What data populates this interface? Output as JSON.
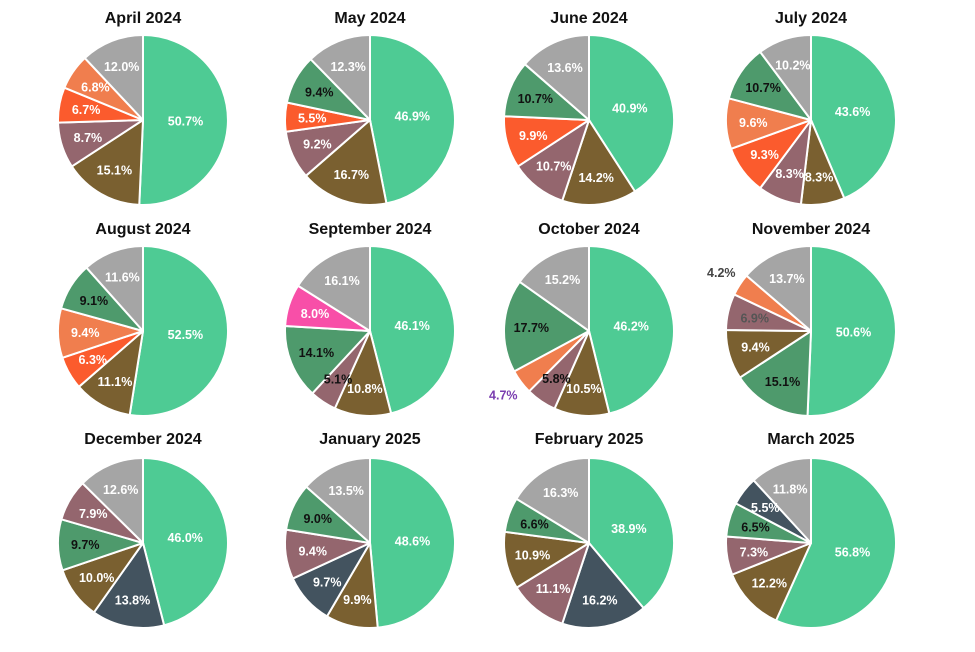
{
  "chart_data": [
    {
      "type": "pie",
      "title": "April 2024",
      "start": "top",
      "direction": "clockwise",
      "slices": [
        {
          "value": 50.7,
          "label": "50.7%",
          "color": "#4ecb94"
        },
        {
          "value": 15.1,
          "label": "15.1%",
          "color": "#7a6030"
        },
        {
          "value": 8.7,
          "label": "8.7%",
          "color": "#94666e"
        },
        {
          "value": 6.7,
          "label": "6.7%",
          "color": "#fb5b2d"
        },
        {
          "value": 6.8,
          "label": "6.8%",
          "color": "#f07e4e"
        },
        {
          "value": 12.0,
          "label": "12.0%",
          "color": "#a5a5a5"
        }
      ]
    },
    {
      "type": "pie",
      "title": "May 2024",
      "start": "top",
      "direction": "clockwise",
      "slices": [
        {
          "value": 46.9,
          "label": "46.9%",
          "color": "#4ecb94"
        },
        {
          "value": 16.7,
          "label": "16.7%",
          "color": "#7a6030"
        },
        {
          "value": 9.2,
          "label": "9.2%",
          "color": "#94666e"
        },
        {
          "value": 5.5,
          "label": "5.5%",
          "color": "#fb5b2d"
        },
        {
          "value": 9.4,
          "label": "9.4%",
          "color": "#4e9a6c",
          "dark": true
        },
        {
          "value": 12.3,
          "label": "12.3%",
          "color": "#a5a5a5"
        }
      ]
    },
    {
      "type": "pie",
      "title": "June 2024",
      "start": "top",
      "direction": "clockwise",
      "slices": [
        {
          "value": 40.9,
          "label": "40.9%",
          "color": "#4ecb94"
        },
        {
          "value": 14.2,
          "label": "14.2%",
          "color": "#7a6030"
        },
        {
          "value": 10.7,
          "label": "10.7%",
          "color": "#94666e"
        },
        {
          "value": 9.9,
          "label": "9.9%",
          "color": "#fb5b2d"
        },
        {
          "value": 10.7,
          "label": "10.7%",
          "color": "#4e9a6c",
          "dark": true
        },
        {
          "value": 13.6,
          "label": "13.6%",
          "color": "#a5a5a5"
        }
      ]
    },
    {
      "type": "pie",
      "title": "July 2024",
      "start": "top",
      "direction": "clockwise",
      "slices": [
        {
          "value": 43.6,
          "label": "43.6%",
          "color": "#4ecb94"
        },
        {
          "value": 8.3,
          "label": "8.3%",
          "color": "#7a6030"
        },
        {
          "value": 8.3,
          "label": "8.3%",
          "color": "#94666e"
        },
        {
          "value": 9.3,
          "label": "9.3%",
          "color": "#fb5b2d"
        },
        {
          "value": 9.6,
          "label": "9.6%",
          "color": "#f07e4e"
        },
        {
          "value": 10.7,
          "label": "10.7%",
          "color": "#4e9a6c",
          "dark": true
        },
        {
          "value": 10.2,
          "label": "10.2%",
          "color": "#a5a5a5"
        }
      ]
    },
    {
      "type": "pie",
      "title": "August 2024",
      "start": "top",
      "direction": "clockwise",
      "slices": [
        {
          "value": 52.5,
          "label": "52.5%",
          "color": "#4ecb94"
        },
        {
          "value": 11.1,
          "label": "11.1%",
          "color": "#7a6030"
        },
        {
          "value": 6.3,
          "label": "6.3%",
          "color": "#fb5b2d"
        },
        {
          "value": 9.4,
          "label": "9.4%",
          "color": "#f07e4e"
        },
        {
          "value": 9.1,
          "label": "9.1%",
          "color": "#4e9a6c",
          "dark": true
        },
        {
          "value": 11.6,
          "label": "11.6%",
          "color": "#a5a5a5"
        }
      ]
    },
    {
      "type": "pie",
      "title": "September 2024",
      "start": "top",
      "direction": "clockwise",
      "slices": [
        {
          "value": 46.1,
          "label": "46.1%",
          "color": "#4ecb94"
        },
        {
          "value": 10.8,
          "label": "10.8%",
          "color": "#7a6030"
        },
        {
          "value": 5.1,
          "label": "5.1%",
          "color": "#94666e",
          "dark": true
        },
        {
          "value": 14.1,
          "label": "14.1%",
          "color": "#4e9a6c",
          "dark": true
        },
        {
          "value": 8.0,
          "label": "8.0%",
          "color": "#f84fa8"
        },
        {
          "value": 16.1,
          "label": "16.1%",
          "color": "#a5a5a5"
        }
      ]
    },
    {
      "type": "pie",
      "title": "October 2024",
      "start": "top",
      "direction": "clockwise",
      "slices": [
        {
          "value": 46.2,
          "label": "46.2%",
          "color": "#4ecb94"
        },
        {
          "value": 10.5,
          "label": "10.5%",
          "color": "#7a6030"
        },
        {
          "value": 5.8,
          "label": "5.8%",
          "color": "#94666e",
          "dark": true
        },
        {
          "value": 4.7,
          "label": "4.7%",
          "color": "#f07e4e",
          "outside": true,
          "labelColor": "#7a3db0"
        },
        {
          "value": 17.7,
          "label": "17.7%",
          "color": "#4e9a6c",
          "dark": true
        },
        {
          "value": 15.2,
          "label": "15.2%",
          "color": "#a5a5a5"
        }
      ]
    },
    {
      "type": "pie",
      "title": "November 2024",
      "start": "top",
      "direction": "clockwise",
      "slices": [
        {
          "value": 50.6,
          "label": "50.6%",
          "color": "#4ecb94"
        },
        {
          "value": 15.1,
          "label": "15.1%",
          "color": "#4e9a6c",
          "dark": true
        },
        {
          "value": 9.4,
          "label": "9.4%",
          "color": "#7a6030"
        },
        {
          "value": 6.9,
          "label": "6.9%",
          "color": "#94666e",
          "labelColor": "#555555"
        },
        {
          "value": 4.2,
          "label": "4.2%",
          "color": "#f07e4e",
          "outside": true,
          "labelColor": "#444444"
        },
        {
          "value": 13.7,
          "label": "13.7%",
          "color": "#a5a5a5"
        }
      ]
    },
    {
      "type": "pie",
      "title": "December 2024",
      "start": "top",
      "direction": "clockwise",
      "slices": [
        {
          "value": 46.0,
          "label": "46.0%",
          "color": "#4ecb94"
        },
        {
          "value": 13.8,
          "label": "13.8%",
          "color": "#43535f"
        },
        {
          "value": 10.0,
          "label": "10.0%",
          "color": "#7a6030"
        },
        {
          "value": 9.7,
          "label": "9.7%",
          "color": "#4e9a6c",
          "dark": true
        },
        {
          "value": 7.9,
          "label": "7.9%",
          "color": "#94666e"
        },
        {
          "value": 12.6,
          "label": "12.6%",
          "color": "#a5a5a5"
        }
      ]
    },
    {
      "type": "pie",
      "title": "January 2025",
      "start": "top",
      "direction": "clockwise",
      "slices": [
        {
          "value": 48.6,
          "label": "48.6%",
          "color": "#4ecb94"
        },
        {
          "value": 9.9,
          "label": "9.9%",
          "color": "#7a6030"
        },
        {
          "value": 9.7,
          "label": "9.7%",
          "color": "#43535f"
        },
        {
          "value": 9.4,
          "label": "9.4%",
          "color": "#94666e"
        },
        {
          "value": 9.0,
          "label": "9.0%",
          "color": "#4e9a6c",
          "dark": true
        },
        {
          "value": 13.5,
          "label": "13.5%",
          "color": "#a5a5a5"
        }
      ]
    },
    {
      "type": "pie",
      "title": "February 2025",
      "start": "top",
      "direction": "clockwise",
      "slices": [
        {
          "value": 38.9,
          "label": "38.9%",
          "color": "#4ecb94"
        },
        {
          "value": 16.2,
          "label": "16.2%",
          "color": "#43535f"
        },
        {
          "value": 11.1,
          "label": "11.1%",
          "color": "#94666e"
        },
        {
          "value": 10.9,
          "label": "10.9%",
          "color": "#7a6030"
        },
        {
          "value": 6.6,
          "label": "6.6%",
          "color": "#4e9a6c",
          "dark": true
        },
        {
          "value": 16.3,
          "label": "16.3%",
          "color": "#a5a5a5"
        }
      ]
    },
    {
      "type": "pie",
      "title": "March 2025",
      "start": "top",
      "direction": "clockwise",
      "slices": [
        {
          "value": 56.8,
          "label": "56.8%",
          "color": "#4ecb94"
        },
        {
          "value": 12.2,
          "label": "12.2%",
          "color": "#7a6030"
        },
        {
          "value": 7.3,
          "label": "7.3%",
          "color": "#94666e"
        },
        {
          "value": 6.5,
          "label": "6.5%",
          "color": "#4e9a6c",
          "dark": true
        },
        {
          "value": 5.5,
          "label": "5.5%",
          "color": "#43535f"
        },
        {
          "value": 11.8,
          "label": "11.8%",
          "color": "#a5a5a5"
        }
      ]
    }
  ]
}
